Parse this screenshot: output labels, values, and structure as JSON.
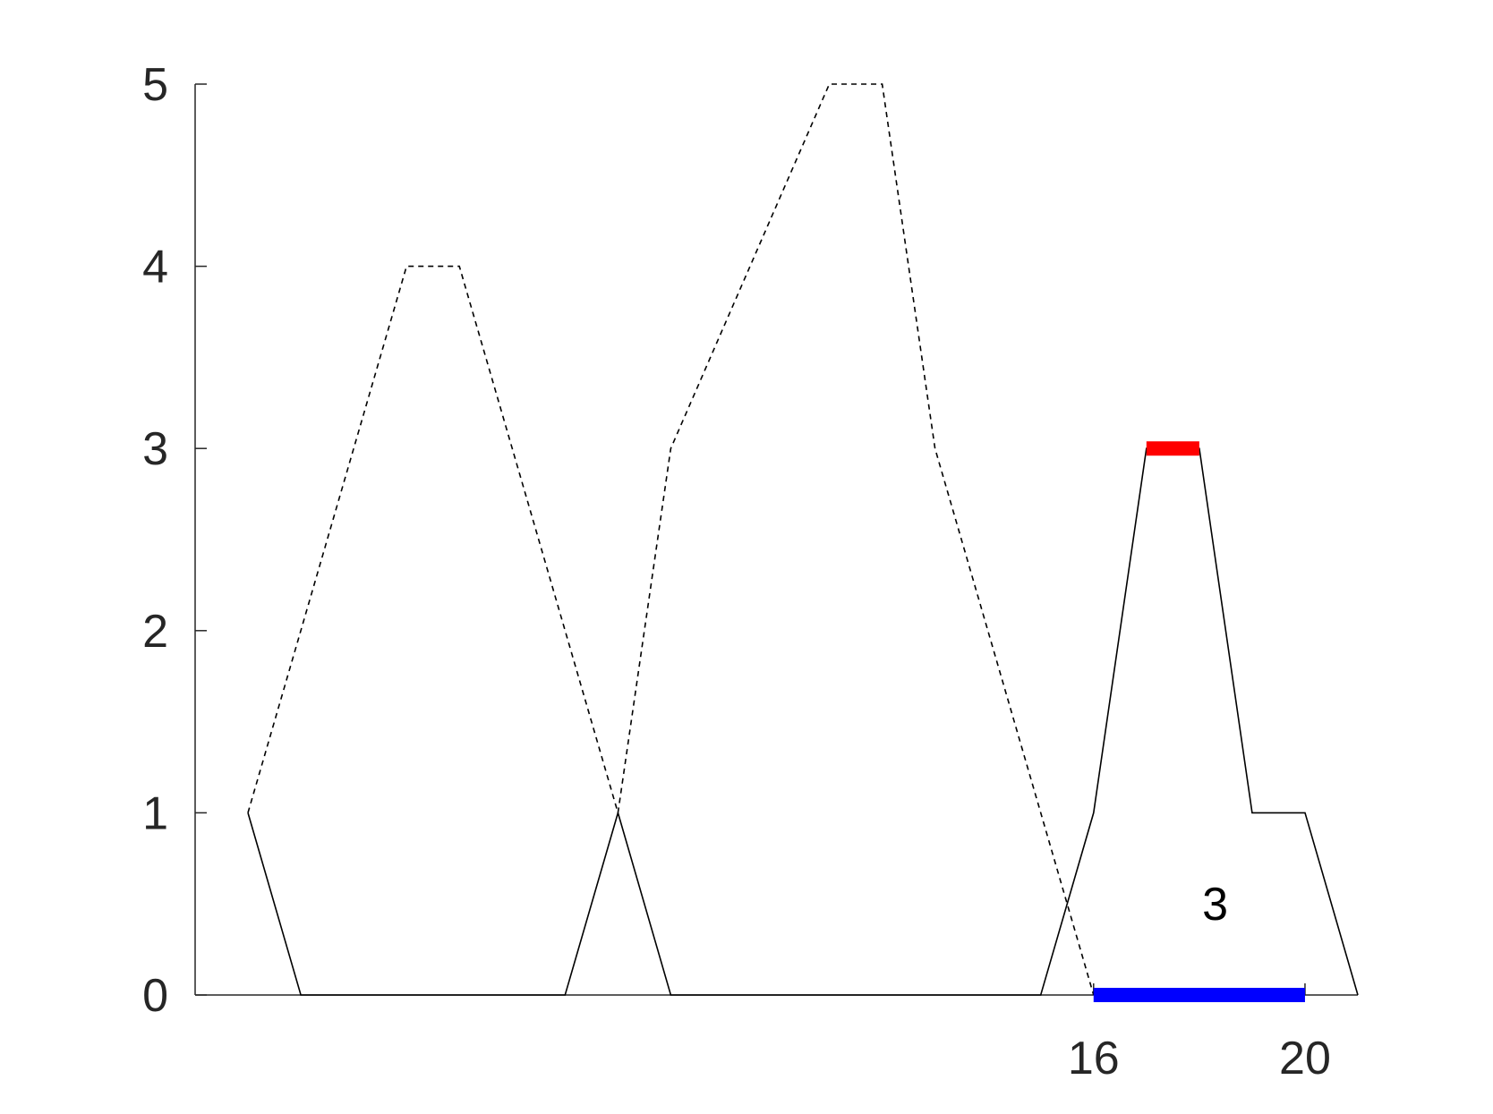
{
  "chart_data": {
    "type": "line",
    "title": "",
    "xlabel": "",
    "ylabel": "",
    "xlim": [
      -1,
      21
    ],
    "ylim": [
      0,
      5
    ],
    "yticks": [
      0,
      1,
      2,
      3,
      4,
      5
    ],
    "xticks": [
      16,
      20
    ],
    "grid": false,
    "series": [
      {
        "style": "dashed",
        "color": "#000000",
        "x": [
          0,
          3,
          4,
          7,
          8,
          11,
          12,
          13,
          16
        ],
        "y": [
          1,
          4,
          4,
          1,
          3,
          5,
          5,
          3,
          0
        ]
      },
      {
        "style": "solid",
        "color": "#000000",
        "x": [
          0,
          1,
          6,
          7,
          8,
          14,
          15,
          16,
          17,
          18,
          19,
          20,
          21
        ],
        "y": [
          1,
          0,
          0,
          1,
          0,
          0,
          0,
          1,
          3,
          3,
          1,
          1,
          0
        ]
      }
    ],
    "highlights": [
      {
        "color": "#ff0000",
        "x": [
          17,
          18
        ],
        "y": [
          3,
          3
        ]
      },
      {
        "color": "#0000ff",
        "x": [
          16,
          20
        ],
        "y": [
          0,
          0
        ]
      }
    ],
    "annotations": [
      {
        "text": "3",
        "x": 18.3,
        "y": 0.5
      }
    ]
  }
}
